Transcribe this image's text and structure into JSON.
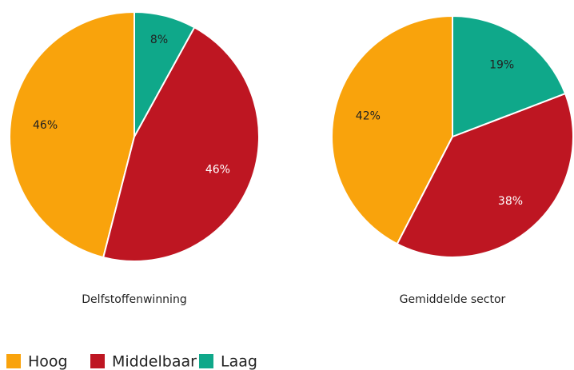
{
  "chart_data": [
    {
      "type": "pie",
      "title": "Delfstoffenwinning",
      "categories": [
        "Hoog",
        "Middelbaar",
        "Laag"
      ],
      "values": [
        46,
        46,
        8
      ],
      "value_labels": [
        "46%",
        "46%",
        "8%"
      ],
      "colors": [
        "#f9a30c",
        "#be1622",
        "#0fa88a"
      ],
      "label_colors": [
        "#222222",
        "#ffffff",
        "#222222"
      ]
    },
    {
      "type": "pie",
      "title": "Gemiddelde sector",
      "categories": [
        "Hoog",
        "Middelbaar",
        "Laag"
      ],
      "values": [
        42,
        38,
        19
      ],
      "value_labels": [
        "42%",
        "38%",
        "19%"
      ],
      "colors": [
        "#f9a30c",
        "#be1622",
        "#0fa88a"
      ],
      "label_colors": [
        "#222222",
        "#ffffff",
        "#222222"
      ]
    }
  ]
}
